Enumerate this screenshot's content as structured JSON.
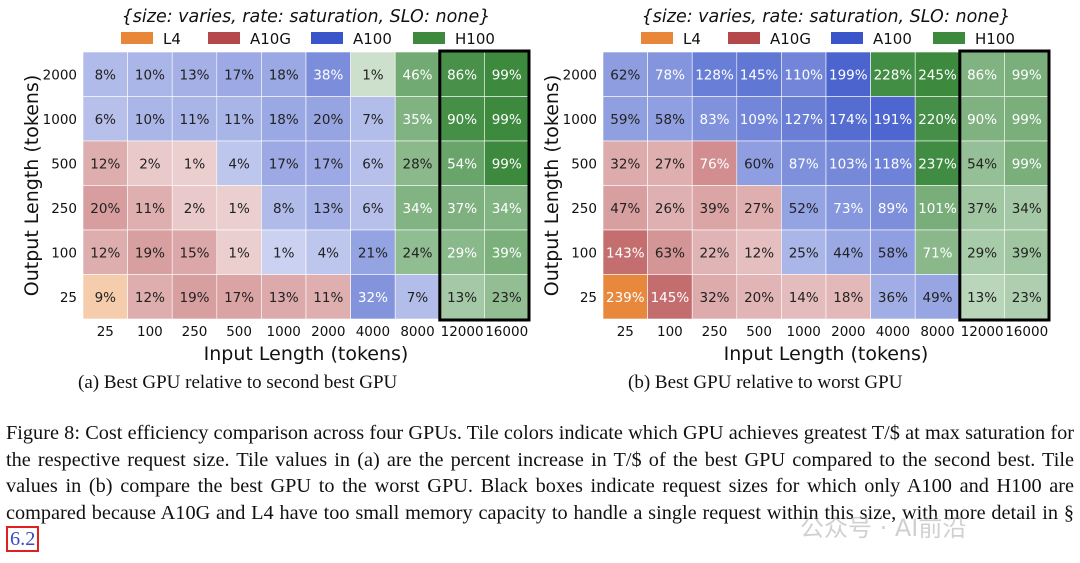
{
  "figure": {
    "caption_prefix": "Figure 8: ",
    "caption_text": "Cost efficiency comparison across four GPUs. Tile colors indicate which GPU achieves greatest T/$ at max saturation for the respective request size. Tile values in (a) are the percent increase in T/$ of the best GPU compared to the second best. Tile values in (b) compare the best GPU to the worst GPU. Black boxes indicate request sizes for which only A100 and H100 are compared because A10G and L4 have too small memory capacity to handle a single request within this size, with more detail in § ",
    "caption_ref": "6.2",
    "watermark": "公众号 · AI前沿"
  },
  "legend_colors": {
    "L4": "#e8873a",
    "A10G": "#b5484a",
    "A100": "#3a55c9",
    "H100": "#3d8a3f"
  },
  "chart_data": [
    {
      "type": "heatmap",
      "title": "{size: varies, rate: saturation, SLO: none}",
      "subcaption": "(a) Best GPU relative to second best GPU",
      "xlabel": "Input Length (tokens)",
      "ylabel": "Output Length (tokens)",
      "x": [
        "25",
        "100",
        "250",
        "500",
        "1000",
        "2000",
        "4000",
        "8000",
        "12000",
        "16000"
      ],
      "y": [
        "2000",
        "1000",
        "500",
        "250",
        "100",
        "25"
      ],
      "legend": [
        "L4",
        "A10G",
        "A100",
        "H100"
      ],
      "boxed_columns": [
        "12000",
        "16000"
      ],
      "values": [
        [
          8,
          10,
          13,
          17,
          18,
          38,
          1,
          46,
          86,
          99
        ],
        [
          6,
          10,
          11,
          11,
          18,
          20,
          7,
          35,
          90,
          99
        ],
        [
          12,
          2,
          1,
          4,
          17,
          17,
          6,
          28,
          54,
          99
        ],
        [
          20,
          11,
          2,
          1,
          8,
          13,
          6,
          34,
          37,
          34
        ],
        [
          12,
          19,
          15,
          1,
          1,
          4,
          21,
          24,
          29,
          39
        ],
        [
          9,
          12,
          19,
          17,
          13,
          11,
          32,
          7,
          13,
          23
        ]
      ],
      "best_gpu": [
        [
          "A100",
          "A100",
          "A100",
          "A100",
          "A100",
          "A100",
          "H100",
          "H100",
          "H100",
          "H100"
        ],
        [
          "A100",
          "A100",
          "A100",
          "A100",
          "A100",
          "A100",
          "A100",
          "H100",
          "H100",
          "H100"
        ],
        [
          "A10G",
          "A10G",
          "A10G",
          "A100",
          "A100",
          "A100",
          "A100",
          "H100",
          "H100",
          "H100"
        ],
        [
          "A10G",
          "A10G",
          "A10G",
          "A10G",
          "A100",
          "A100",
          "A100",
          "H100",
          "H100",
          "H100"
        ],
        [
          "A10G",
          "A10G",
          "A10G",
          "A10G",
          "A100",
          "A100",
          "A100",
          "H100",
          "H100",
          "H100"
        ],
        [
          "L4",
          "A10G",
          "A10G",
          "A10G",
          "A10G",
          "A10G",
          "A100",
          "A100",
          "H100",
          "H100"
        ]
      ]
    },
    {
      "type": "heatmap",
      "title": "{size: varies, rate: saturation, SLO: none}",
      "subcaption": "(b) Best GPU relative to worst GPU",
      "xlabel": "Input Length (tokens)",
      "ylabel": "Output Length (tokens)",
      "x": [
        "25",
        "100",
        "250",
        "500",
        "1000",
        "2000",
        "4000",
        "8000",
        "12000",
        "16000"
      ],
      "y": [
        "2000",
        "1000",
        "500",
        "250",
        "100",
        "25"
      ],
      "legend": [
        "L4",
        "A10G",
        "A100",
        "H100"
      ],
      "boxed_columns": [
        "12000",
        "16000"
      ],
      "values": [
        [
          62,
          78,
          128,
          145,
          110,
          199,
          228,
          245,
          86,
          99
        ],
        [
          59,
          58,
          83,
          109,
          127,
          174,
          191,
          220,
          90,
          99
        ],
        [
          32,
          27,
          76,
          60,
          87,
          103,
          118,
          237,
          54,
          99
        ],
        [
          47,
          26,
          39,
          27,
          52,
          73,
          89,
          101,
          37,
          34
        ],
        [
          143,
          63,
          22,
          12,
          25,
          44,
          58,
          71,
          29,
          39
        ],
        [
          239,
          145,
          32,
          20,
          14,
          18,
          36,
          49,
          13,
          23
        ]
      ],
      "best_gpu": [
        [
          "A100",
          "A100",
          "A100",
          "A100",
          "A100",
          "A100",
          "H100",
          "H100",
          "H100",
          "H100"
        ],
        [
          "A100",
          "A100",
          "A100",
          "A100",
          "A100",
          "A100",
          "A100",
          "H100",
          "H100",
          "H100"
        ],
        [
          "A10G",
          "A10G",
          "A10G",
          "A100",
          "A100",
          "A100",
          "A100",
          "H100",
          "H100",
          "H100"
        ],
        [
          "A10G",
          "A10G",
          "A10G",
          "A10G",
          "A100",
          "A100",
          "A100",
          "H100",
          "H100",
          "H100"
        ],
        [
          "A10G",
          "A10G",
          "A10G",
          "A10G",
          "A100",
          "A100",
          "A100",
          "H100",
          "H100",
          "H100"
        ],
        [
          "L4",
          "A10G",
          "A10G",
          "A10G",
          "A10G",
          "A10G",
          "A100",
          "A100",
          "H100",
          "H100"
        ]
      ]
    }
  ]
}
